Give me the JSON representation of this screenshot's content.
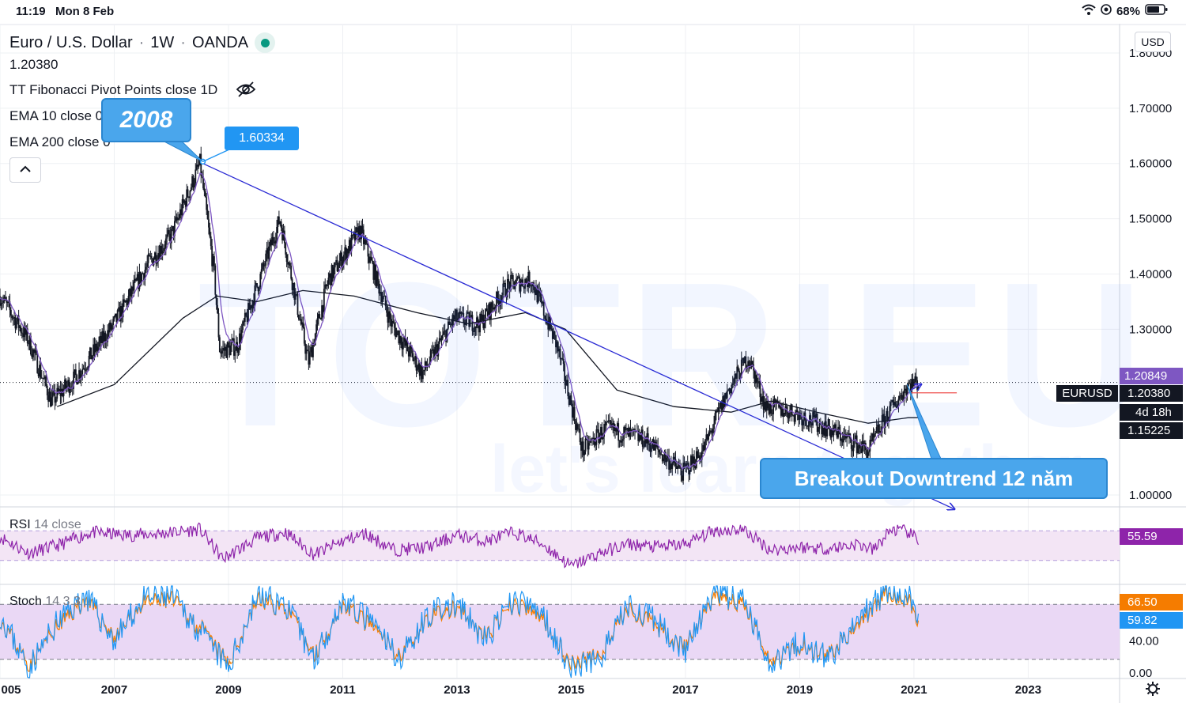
{
  "status_bar": {
    "time": "11:19",
    "date": "Mon 8 Feb",
    "battery": "68%"
  },
  "watermark": {
    "brand": "TOTRIEU",
    "tagline": "let's learn together"
  },
  "header": {
    "symbol": "Euro / U.S. Dollar",
    "timeframe": "1W",
    "exchange": "OANDA",
    "price": "1.20380",
    "indicators": [
      "TT Fibonacci Pivot Points close 1D",
      "EMA 10 close 0",
      "EMA 200 close 0"
    ]
  },
  "currency_button": "USD",
  "annotations": {
    "year_callout": "2008",
    "peak_price": "1.60334",
    "breakout_text": "Breakout Downtrend 12 năm"
  },
  "price_badges": {
    "last": "1.20849",
    "symbol": "EURUSD",
    "close": "1.20380",
    "countdown": "4d 18h",
    "support": "1.15225",
    "rsi": "55.59",
    "stoch_k": "66.50",
    "stoch_d": "59.82"
  },
  "rsi_label": {
    "name": "RSI",
    "params": "14 close"
  },
  "stoch_label": {
    "name": "Stoch",
    "params": "14 3 3"
  },
  "colors": {
    "candle": "#131722",
    "ema10": "#7e57c2",
    "ema200": "#131722",
    "trendline": "#2a2ad4",
    "rsi_line": "#8e24aa",
    "rsi_band": "#f3e5f5",
    "stoch_band": "#ead8f5",
    "stoch_k": "#2196f3",
    "stoch_d": "#f57c00",
    "callout": "#4aa6ec"
  },
  "chart_data": {
    "type": "candlestick",
    "title": "Euro / U.S. Dollar · 1W · OANDA",
    "x_axis": {
      "ticks": [
        "005",
        "2007",
        "2009",
        "2011",
        "2013",
        "2015",
        "2017",
        "2019",
        "2021",
        "2023"
      ],
      "range": [
        2005.0,
        2024.6
      ]
    },
    "y_axis": {
      "ticks": [
        "1.80000",
        "1.70000",
        "1.60000",
        "1.50000",
        "1.40000",
        "1.30000",
        "1.00000"
      ],
      "range": [
        0.98,
        1.85
      ],
      "scale": "linear"
    },
    "price_path": {
      "x": [
        2005.0,
        2005.5,
        2005.9,
        2006.3,
        2007.0,
        2007.6,
        2008.0,
        2008.5,
        2008.75,
        2008.85,
        2009.15,
        2009.9,
        2010.4,
        2010.75,
        2011.3,
        2011.85,
        2012.4,
        2012.95,
        2013.4,
        2013.9,
        2014.3,
        2014.75,
        2015.2,
        2015.6,
        2016.3,
        2016.95,
        2017.3,
        2017.75,
        2018.1,
        2018.4,
        2018.9,
        2019.5,
        2020.2,
        2020.5,
        2020.9,
        2021.08
      ],
      "y": [
        1.36,
        1.28,
        1.17,
        1.21,
        1.31,
        1.42,
        1.47,
        1.6,
        1.4,
        1.26,
        1.27,
        1.5,
        1.24,
        1.39,
        1.48,
        1.31,
        1.22,
        1.32,
        1.31,
        1.38,
        1.39,
        1.27,
        1.08,
        1.12,
        1.1,
        1.04,
        1.08,
        1.19,
        1.25,
        1.16,
        1.15,
        1.12,
        1.08,
        1.14,
        1.2,
        1.2038
      ]
    },
    "ema200": {
      "x": [
        2006.0,
        2007.0,
        2008.2,
        2008.8,
        2009.5,
        2010.3,
        2011.2,
        2012.3,
        2013.2,
        2014.2,
        2014.9,
        2015.8,
        2016.8,
        2017.8,
        2018.5,
        2019.3,
        2020.2,
        2020.9,
        2021.08
      ],
      "y": [
        1.16,
        1.2,
        1.32,
        1.36,
        1.35,
        1.37,
        1.36,
        1.33,
        1.31,
        1.33,
        1.3,
        1.19,
        1.16,
        1.15,
        1.17,
        1.15,
        1.13,
        1.14,
        1.14
      ]
    },
    "trendline": {
      "x": [
        2008.55,
        2019.7
      ],
      "y": [
        1.6,
        1.07
      ],
      "arrow": true
    },
    "peak": {
      "x": 2008.55,
      "y": 1.60334,
      "label": "1.60334"
    },
    "horizontal_line": {
      "y": 1.2038,
      "style": "dotted"
    },
    "rsi": {
      "params": "14 close",
      "x": [
        2005.0,
        2005.5,
        2006.0,
        2006.6,
        2007.2,
        2007.8,
        2008.5,
        2008.9,
        2009.5,
        2010.0,
        2010.5,
        2011.0,
        2011.4,
        2011.9,
        2012.5,
        2013.0,
        2013.5,
        2014.0,
        2014.5,
        2015.0,
        2015.5,
        2016.0,
        2016.5,
        2017.0,
        2017.5,
        2018.0,
        2018.5,
        2019.0,
        2019.5,
        2020.0,
        2020.3,
        2020.6,
        2020.9,
        2021.08
      ],
      "y": [
        62,
        40,
        50,
        68,
        64,
        66,
        72,
        32,
        60,
        68,
        38,
        56,
        66,
        44,
        48,
        64,
        56,
        68,
        52,
        22,
        40,
        52,
        48,
        52,
        70,
        72,
        44,
        48,
        46,
        52,
        44,
        72,
        68,
        55.59
      ]
    },
    "stoch": {
      "params": "14 3 3",
      "x": [
        2005.0,
        2005.5,
        2006.0,
        2006.5,
        2007.0,
        2007.5,
        2008.0,
        2008.5,
        2009.0,
        2009.5,
        2010.0,
        2010.5,
        2011.0,
        2011.5,
        2012.0,
        2012.5,
        2013.0,
        2013.5,
        2014.0,
        2014.5,
        2015.0,
        2015.5,
        2016.0,
        2016.5,
        2017.0,
        2017.5,
        2018.0,
        2018.5,
        2019.0,
        2019.5,
        2020.0,
        2020.5,
        2020.9,
        2021.08
      ],
      "k": [
        70,
        10,
        60,
        90,
        40,
        85,
        90,
        50,
        10,
        90,
        80,
        20,
        85,
        60,
        20,
        70,
        80,
        40,
        85,
        70,
        10,
        20,
        80,
        60,
        30,
        90,
        85,
        15,
        40,
        20,
        60,
        95,
        90,
        66.5
      ],
      "d": [
        65,
        15,
        55,
        85,
        45,
        80,
        85,
        55,
        15,
        85,
        75,
        25,
        80,
        55,
        25,
        65,
        75,
        45,
        80,
        65,
        15,
        25,
        75,
        55,
        35,
        85,
        80,
        20,
        35,
        25,
        55,
        90,
        85,
        59.82
      ],
      "levels": [
        80,
        20
      ],
      "axis_tick_labels": [
        "40.00",
        "0.00"
      ]
    }
  }
}
